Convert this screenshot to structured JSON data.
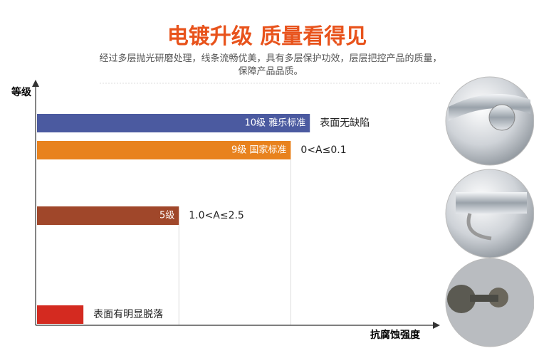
{
  "chart_data": {
    "type": "bar",
    "orientation": "horizontal",
    "title": "电镀升级 质量看得见",
    "subtitle": "经过多层抛光研磨处理，线条流畅优美，具有多层保护功效，层层把控产品的质量，保障产品品质。",
    "ylabel": "等级",
    "xlabel": "抗腐蚀强度",
    "categories": [
      "10级 雅乐标准",
      "9级 国家标准",
      "5级",
      null
    ],
    "annotations": [
      "表面无缺陷",
      "0<A≤0.1",
      "1.0<A≤2.5",
      "表面有明显脱落"
    ],
    "values": [
      10,
      9.3,
      5.2,
      1.7
    ],
    "colors": [
      "#4b5aa0",
      "#e8821e",
      "#a0472a",
      "#d42a20"
    ],
    "xlim": [
      0,
      14.3
    ]
  }
}
